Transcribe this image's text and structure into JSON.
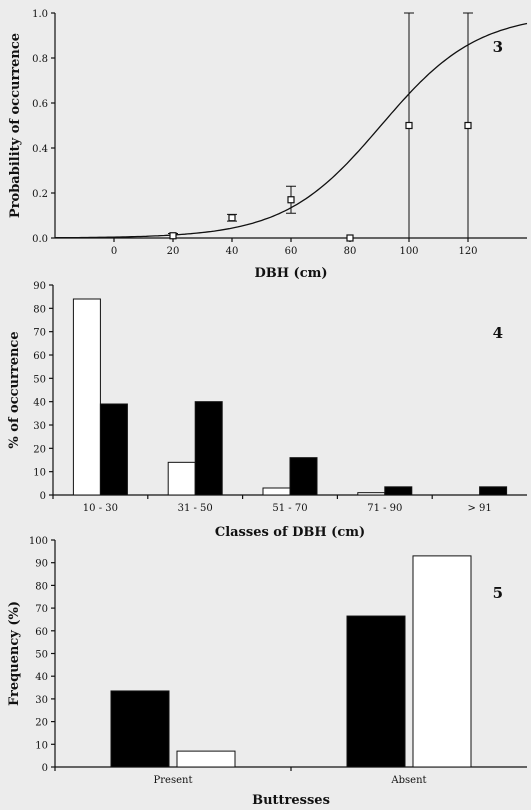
{
  "chart_data": [
    {
      "type": "scatter",
      "panel_label": "3",
      "xlabel": "DBH (cm)",
      "ylabel": "Probability of occurrence",
      "xlim": [
        -20,
        140
      ],
      "ylim": [
        0,
        1
      ],
      "x_ticks": [
        "0",
        "20",
        "40",
        "60",
        "80",
        "100",
        "120"
      ],
      "y_ticks": [
        "0.0",
        "0.2",
        "0.4",
        "0.6",
        "0.8",
        "1.0"
      ],
      "points": [
        {
          "x": 20,
          "y": 0.01,
          "err_low": 0.0,
          "err_high": 0.02
        },
        {
          "x": 40,
          "y": 0.09,
          "err_low": 0.075,
          "err_high": 0.105
        },
        {
          "x": 60,
          "y": 0.17,
          "err_low": 0.11,
          "err_high": 0.23
        },
        {
          "x": 80,
          "y": 0.0,
          "err_low": 0.0,
          "err_high": 0.0
        },
        {
          "x": 100,
          "y": 0.5,
          "err_low": 0.0,
          "err_high": 1.0
        },
        {
          "x": 120,
          "y": 0.5,
          "err_low": 0.0,
          "err_high": 1.0
        }
      ],
      "fit_curve": {
        "type": "logistic",
        "x50": 90.5,
        "slope": 0.061
      }
    },
    {
      "type": "bar",
      "panel_label": "4",
      "xlabel": "Classes of DBH (cm)",
      "ylabel": "% of occurrence",
      "ylim": [
        0,
        90
      ],
      "y_ticks": [
        "0",
        "10",
        "20",
        "30",
        "40",
        "50",
        "60",
        "70",
        "80",
        "90"
      ],
      "categories": [
        "10 - 30",
        "31 - 50",
        "51 - 70",
        "71 - 90",
        "> 91"
      ],
      "series": [
        {
          "fill": "#ffffff",
          "values": [
            84,
            14,
            3,
            1,
            0
          ]
        },
        {
          "fill": "#000000",
          "values": [
            39,
            40,
            16,
            3.5,
            3.5
          ]
        }
      ]
    },
    {
      "type": "bar",
      "panel_label": "5",
      "xlabel": "Buttresses",
      "ylabel": "Frequency (%)",
      "ylim": [
        0,
        100
      ],
      "y_ticks": [
        "0",
        "10",
        "20",
        "30",
        "40",
        "50",
        "60",
        "70",
        "80",
        "90",
        "100"
      ],
      "categories": [
        "Present",
        "Absent"
      ],
      "series": [
        {
          "fill": "#000000",
          "values": [
            33.5,
            66.5
          ]
        },
        {
          "fill": "#ffffff",
          "values": [
            7,
            93
          ]
        }
      ]
    }
  ]
}
